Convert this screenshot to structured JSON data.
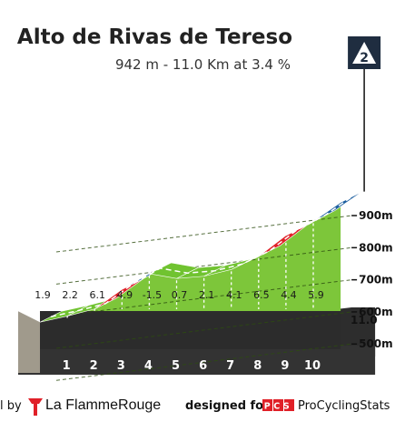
{
  "header": {
    "title": "Alto de Rivas de Tereso",
    "subtitle": "942 m - 11.0 Km at 3.4 %"
  },
  "category_badge": "2",
  "chart_data": {
    "type": "area",
    "xlabel": "",
    "ylabel": "",
    "x": [
      0,
      1,
      2,
      3,
      4,
      5,
      6,
      7,
      8,
      9,
      10,
      11.0
    ],
    "elevation": [
      568,
      587,
      609,
      670,
      719,
      704,
      711,
      732,
      773,
      838,
      882,
      941
    ],
    "km_ticks": [
      "1",
      "2",
      "3",
      "4",
      "5",
      "6",
      "7",
      "8",
      "9",
      "10"
    ],
    "end_label": "11.0",
    "segment_gradients": [
      "1.9",
      "2.2",
      "6.1",
      "4.9",
      "-1.5",
      "0.7",
      "2.1",
      "4.1",
      "6.5",
      "4.4",
      "5.9"
    ],
    "y_ticks": [
      "500m",
      "600m",
      "700m",
      "800m",
      "900m"
    ],
    "ylim": [
      440,
      980
    ],
    "gradient_colors": {
      "easy": "#70c330",
      "medium": "#1d5fa0",
      "hard": "#e02028"
    },
    "grid": true
  },
  "footer": {
    "by_text": "l by",
    "brand": "La FlammeRouge",
    "designed_text": "designed for",
    "pcs_logo": "PCS",
    "pcs_name": "ProCyclingStats"
  }
}
